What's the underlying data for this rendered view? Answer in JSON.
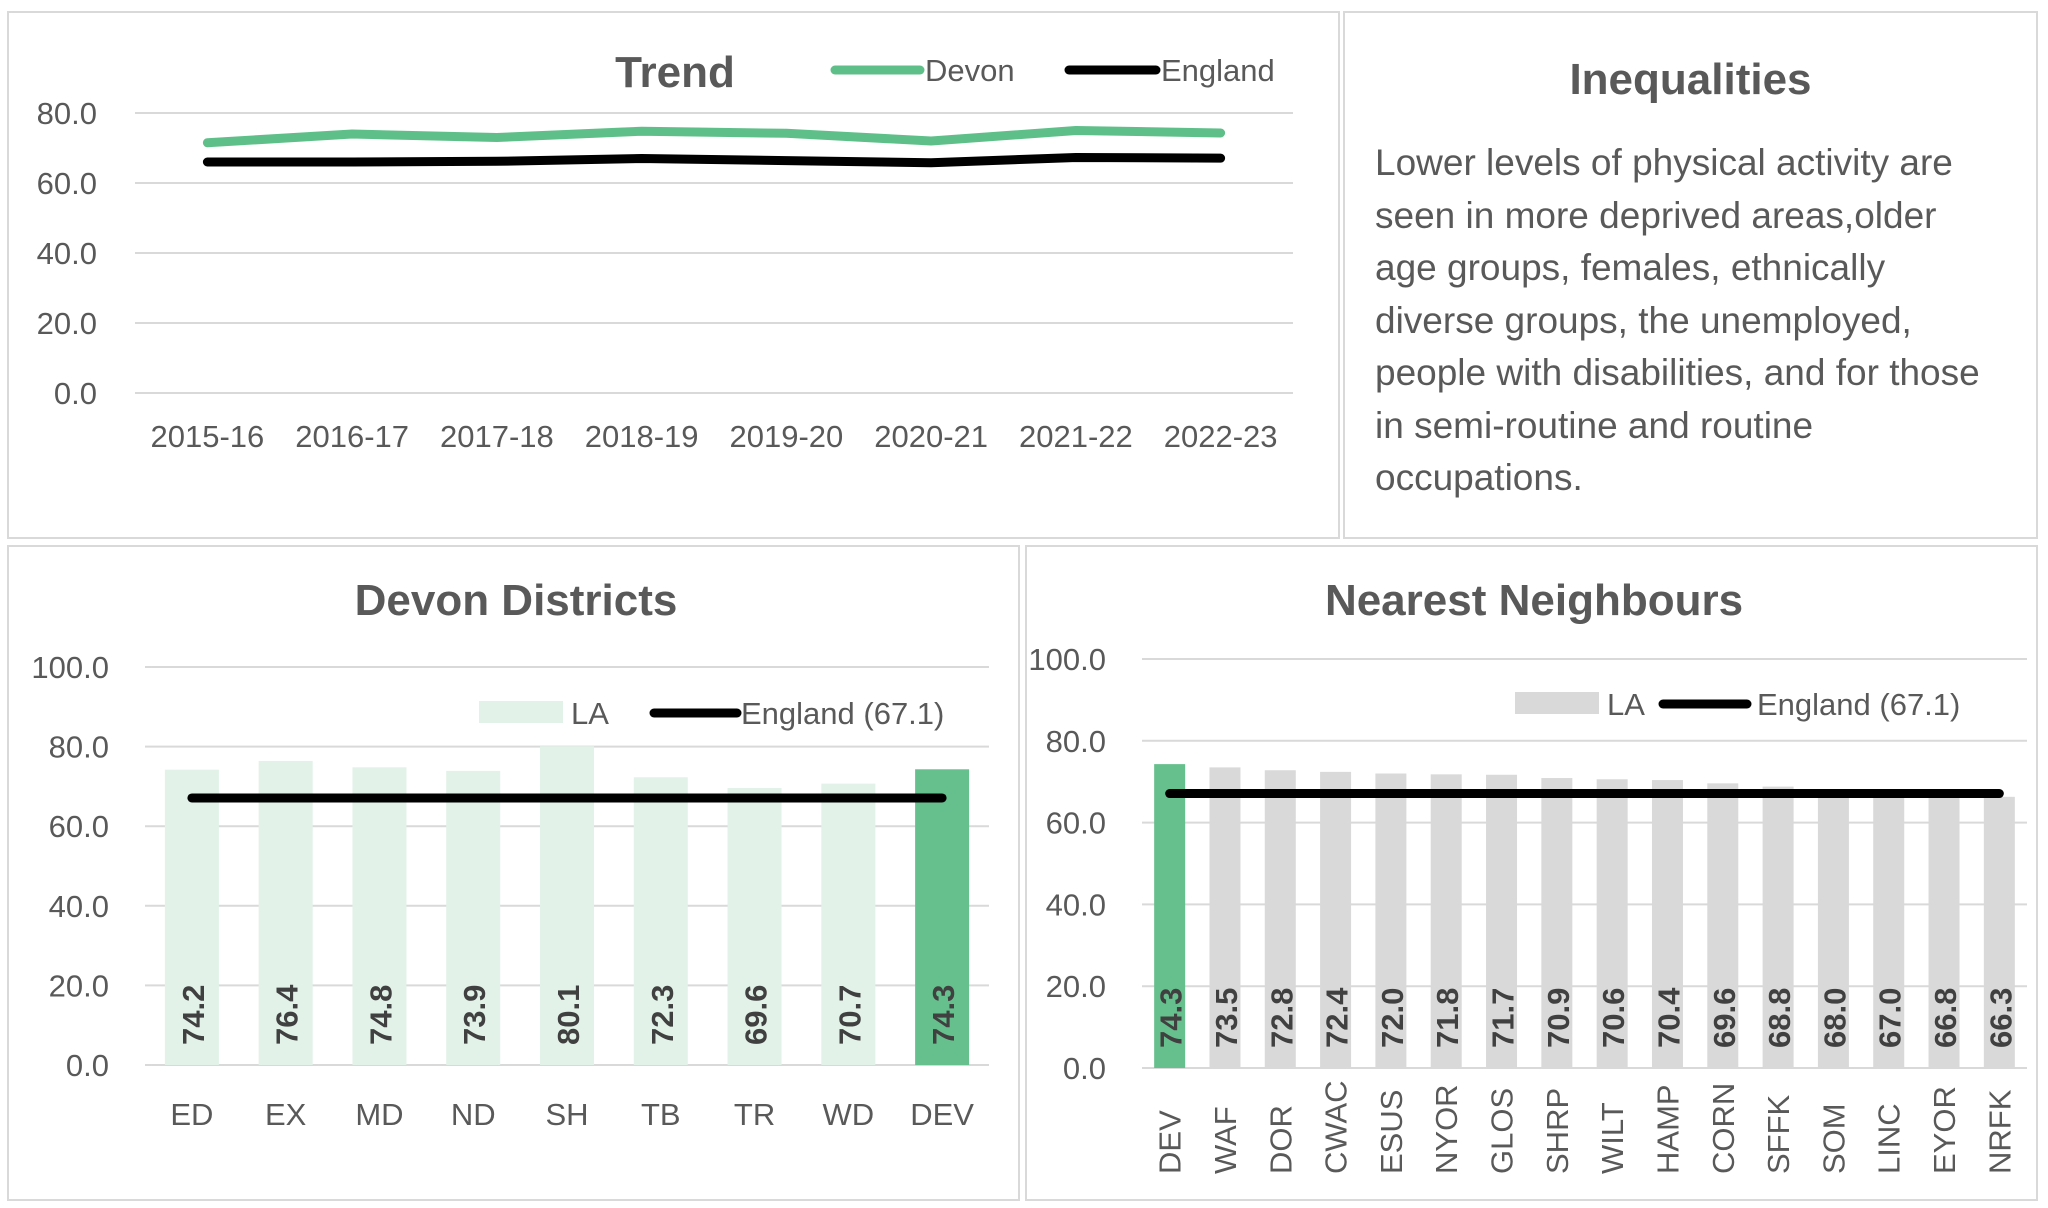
{
  "chart_data": [
    {
      "type": "line",
      "title": "Trend",
      "x": [
        "2015-16",
        "2016-17",
        "2017-18",
        "2018-19",
        "2019-20",
        "2020-21",
        "2021-22",
        "2022-23"
      ],
      "series": [
        {
          "name": "Devon",
          "color": "#5fbf89",
          "values": [
            71.5,
            74.0,
            73.0,
            74.8,
            74.2,
            72.0,
            75.0,
            74.3
          ]
        },
        {
          "name": "England",
          "color": "#000000",
          "values": [
            66.0,
            66.0,
            66.2,
            67.0,
            66.4,
            65.8,
            67.3,
            67.1
          ]
        }
      ],
      "ylim": [
        0,
        80
      ],
      "yticks": [
        "0.0",
        "20.0",
        "40.0",
        "60.0",
        "80.0"
      ],
      "grid": true,
      "legend": "top-right",
      "xlabel": "",
      "ylabel": ""
    },
    {
      "type": "bar",
      "title": "Devon Districts",
      "categories": [
        "ED",
        "EX",
        "MD",
        "ND",
        "SH",
        "TB",
        "TR",
        "WD",
        "DEV"
      ],
      "values": [
        74.2,
        76.4,
        74.8,
        73.9,
        80.1,
        72.3,
        69.6,
        70.7,
        74.3
      ],
      "value_labels": [
        "74.2",
        "76.4",
        "74.8",
        "73.9",
        "80.1",
        "72.3",
        "69.6",
        "70.7",
        "74.3"
      ],
      "bar_color": "#e2f2e8",
      "highlight_color": "#66c08d",
      "highlight_category": "DEV",
      "reference_line": {
        "name": "England (67.1)",
        "value": 67.1,
        "color": "#000000"
      },
      "legend_la": "LA",
      "ylim": [
        0,
        100
      ],
      "yticks": [
        "0.0",
        "20.0",
        "40.0",
        "60.0",
        "80.0",
        "100.0"
      ],
      "grid": true,
      "legend": "top-right",
      "xlabel": "",
      "ylabel": ""
    },
    {
      "type": "bar",
      "title": "Nearest Neighbours",
      "categories": [
        "DEV",
        "WAF",
        "DOR",
        "CWAC",
        "ESUS",
        "NYOR",
        "GLOS",
        "SHRP",
        "WILT",
        "HAMP",
        "CORN",
        "SFFK",
        "SOM",
        "LINC",
        "EYOR",
        "NRFK"
      ],
      "values": [
        74.3,
        73.5,
        72.8,
        72.4,
        72.0,
        71.8,
        71.7,
        70.9,
        70.6,
        70.4,
        69.6,
        68.8,
        68.0,
        67.0,
        66.8,
        66.3
      ],
      "value_labels": [
        "74.3",
        "73.5",
        "72.8",
        "72.4",
        "72.0",
        "71.8",
        "71.7",
        "70.9",
        "70.6",
        "70.4",
        "69.6",
        "68.8",
        "68.0",
        "67.0",
        "66.8",
        "66.3"
      ],
      "bar_color": "#d9d9d9",
      "highlight_color": "#66c08d",
      "highlight_category": "DEV",
      "reference_line": {
        "name": "England (67.1)",
        "value": 67.1,
        "color": "#000000"
      },
      "legend_la": "LA",
      "ylim": [
        0,
        100
      ],
      "yticks": [
        "0.0",
        "20.0",
        "40.0",
        "60.0",
        "80.0",
        "100.0"
      ],
      "grid": true,
      "legend": "top-right",
      "xlabel": "",
      "ylabel": ""
    }
  ],
  "inequalities": {
    "title": "Inequalities",
    "text": "Lower levels of physical activity are seen in more deprived areas,older age groups, females, ethnically diverse groups, the unemployed, people with disabilities, and for those in semi-routine and routine occupations."
  }
}
